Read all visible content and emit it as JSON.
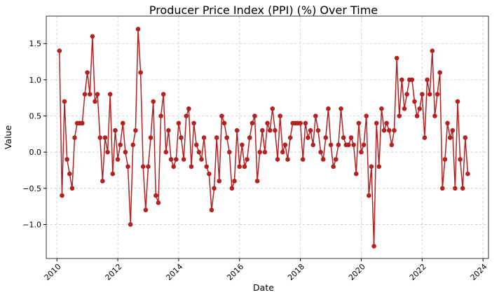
{
  "chart_data": {
    "type": "line",
    "title": "Producer Price Index (PPI) (%) Over Time",
    "x_label": "Date",
    "y_label": "Value",
    "x": [
      2010.083,
      2010.167,
      2010.25,
      2010.333,
      2010.417,
      2010.5,
      2010.583,
      2010.667,
      2010.75,
      2010.833,
      2010.917,
      2011,
      2011.083,
      2011.167,
      2011.25,
      2011.333,
      2011.417,
      2011.5,
      2011.583,
      2011.667,
      2011.75,
      2011.833,
      2011.917,
      2012,
      2012.083,
      2012.167,
      2012.25,
      2012.333,
      2012.417,
      2012.5,
      2012.583,
      2012.667,
      2012.75,
      2012.833,
      2012.917,
      2013,
      2013.083,
      2013.167,
      2013.25,
      2013.333,
      2013.417,
      2013.5,
      2013.583,
      2013.667,
      2013.75,
      2013.833,
      2013.917,
      2014,
      2014.083,
      2014.167,
      2014.25,
      2014.333,
      2014.417,
      2014.5,
      2014.583,
      2014.667,
      2014.75,
      2014.833,
      2014.917,
      2015,
      2015.083,
      2015.167,
      2015.25,
      2015.333,
      2015.417,
      2015.5,
      2015.583,
      2015.667,
      2015.75,
      2015.833,
      2015.917,
      2016,
      2016.083,
      2016.167,
      2016.25,
      2016.333,
      2016.417,
      2016.5,
      2016.583,
      2016.667,
      2016.75,
      2016.833,
      2016.917,
      2017,
      2017.083,
      2017.167,
      2017.25,
      2017.333,
      2017.417,
      2017.5,
      2017.583,
      2017.667,
      2017.75,
      2017.833,
      2017.917,
      2018,
      2018.083,
      2018.167,
      2018.25,
      2018.333,
      2018.417,
      2018.5,
      2018.583,
      2018.667,
      2018.75,
      2018.833,
      2018.917,
      2019,
      2019.083,
      2019.167,
      2019.25,
      2019.333,
      2019.417,
      2019.5,
      2019.583,
      2019.667,
      2019.75,
      2019.833,
      2019.917,
      2020,
      2020.083,
      2020.167,
      2020.25,
      2020.333,
      2020.417,
      2020.5,
      2020.583,
      2020.667,
      2020.75,
      2020.833,
      2020.917,
      2021,
      2021.083,
      2021.167,
      2021.25,
      2021.333,
      2021.417,
      2021.5,
      2021.583,
      2021.667,
      2021.75,
      2021.833,
      2021.917,
      2022,
      2022.083,
      2022.167,
      2022.25,
      2022.333,
      2022.417,
      2022.5,
      2022.583,
      2022.667,
      2022.75,
      2022.833,
      2022.917,
      2023,
      2023.083,
      2023.167,
      2023.25,
      2023.333,
      2023.417,
      2023.5
    ],
    "series": [
      {
        "name": "PPI",
        "color": "#b22222",
        "values": [
          1.4,
          -0.6,
          0.7,
          -0.1,
          -0.3,
          -0.5,
          0.2,
          0.4,
          0.4,
          0.4,
          0.8,
          1.1,
          0.8,
          1.6,
          0.7,
          0.8,
          0.2,
          -0.4,
          0.2,
          0.0,
          0.8,
          -0.3,
          0.3,
          -0.1,
          0.1,
          0.4,
          0.0,
          -0.2,
          -1.0,
          0.1,
          0.3,
          1.7,
          1.1,
          -0.2,
          -0.8,
          -0.2,
          0.2,
          0.7,
          -0.6,
          -0.7,
          0.5,
          0.8,
          0.0,
          0.3,
          -0.1,
          -0.2,
          -0.1,
          0.4,
          0.2,
          -0.1,
          0.5,
          0.6,
          -0.2,
          0.4,
          0.1,
          0.0,
          -0.1,
          0.2,
          -0.2,
          -0.3,
          -0.8,
          -0.5,
          0.2,
          -0.4,
          0.5,
          0.4,
          0.2,
          0.0,
          -0.5,
          -0.4,
          0.3,
          -0.2,
          0.1,
          -0.2,
          -0.1,
          0.2,
          0.4,
          0.5,
          -0.4,
          0.0,
          0.3,
          0.0,
          0.4,
          0.3,
          0.6,
          0.3,
          -0.1,
          0.5,
          0.0,
          0.1,
          -0.1,
          0.2,
          0.4,
          0.4,
          0.4,
          0.4,
          -0.1,
          0.4,
          0.2,
          0.3,
          0.1,
          0.5,
          0.3,
          0.0,
          -0.1,
          0.2,
          0.6,
          0.1,
          -0.2,
          -0.1,
          0.1,
          0.6,
          0.2,
          0.1,
          0.1,
          0.2,
          0.1,
          -0.3,
          0.4,
          0.0,
          0.1,
          0.5,
          -0.6,
          -0.2,
          -1.3,
          0.4,
          -0.2,
          0.6,
          0.3,
          0.4,
          0.3,
          0.1,
          0.3,
          1.3,
          0.5,
          1.0,
          0.6,
          0.8,
          1.0,
          1.0,
          0.7,
          0.5,
          0.6,
          0.8,
          0.2,
          1.0,
          0.8,
          1.4,
          0.5,
          0.8,
          1.1,
          -0.5,
          -0.1,
          0.4,
          0.2,
          0.3,
          -0.5,
          0.7,
          -0.1,
          -0.5,
          0.2,
          -0.3
        ]
      }
    ],
    "xlim": [
      2009.65,
      2024.18
    ],
    "xticks": [
      2010,
      2012,
      2014,
      2016,
      2018,
      2020,
      2022,
      2024
    ],
    "ylim": [
      -1.47,
      1.88
    ],
    "yticks": [
      {
        "value": -1,
        "label": "−1.0"
      },
      {
        "value": -0.5,
        "label": "−0.5"
      },
      {
        "value": 0,
        "label": "0.0"
      },
      0.5,
      {
        "value": 1,
        "label": "1.0"
      },
      1.5
    ],
    "grid": true
  }
}
